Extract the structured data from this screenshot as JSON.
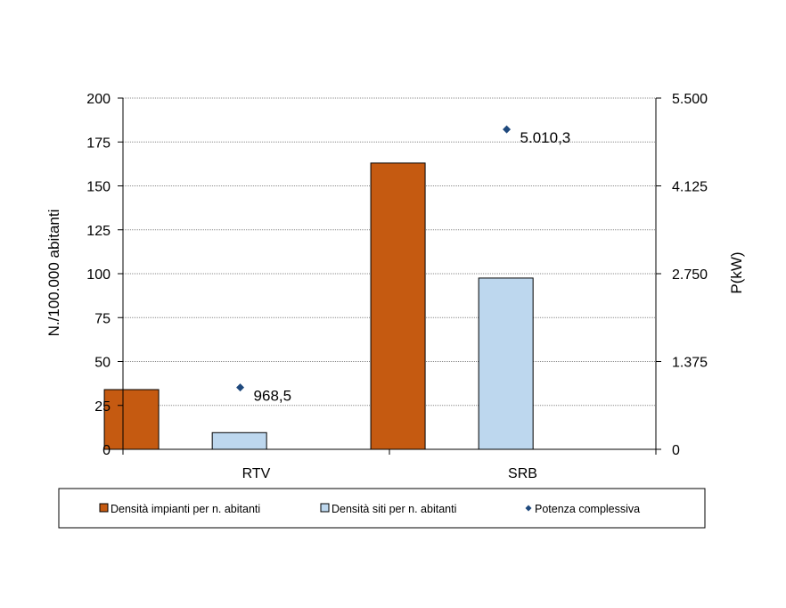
{
  "chart_data": {
    "type": "bar",
    "categories": [
      "RTV",
      "SRB"
    ],
    "series": [
      {
        "name": "Densità impianti per n. abitanti",
        "kind": "bar",
        "axis": "left",
        "color": "#C55A11",
        "values": [
          34,
          163
        ]
      },
      {
        "name": "Densità siti per n. abitanti",
        "kind": "bar",
        "axis": "left",
        "color": "#BDD7EE",
        "values": [
          9.5,
          97.5
        ]
      },
      {
        "name": "Potenza complessiva",
        "kind": "scatter",
        "axis": "right",
        "color": "#1F497D",
        "values": [
          968.5,
          5010.3
        ],
        "labels": [
          "968,5",
          "5.010,3"
        ]
      }
    ],
    "ylabel": "N./100.000 abitanti",
    "y2label": "P(kW)",
    "ylim": [
      0,
      200
    ],
    "y2lim": [
      0,
      5500
    ],
    "yticks": [
      "0",
      "25",
      "50",
      "75",
      "100",
      "125",
      "150",
      "175",
      "200"
    ],
    "y2ticks": [
      "0",
      "1.375",
      "2.750",
      "4.125",
      "5.500"
    ],
    "grid": true,
    "legend_position": "bottom"
  }
}
